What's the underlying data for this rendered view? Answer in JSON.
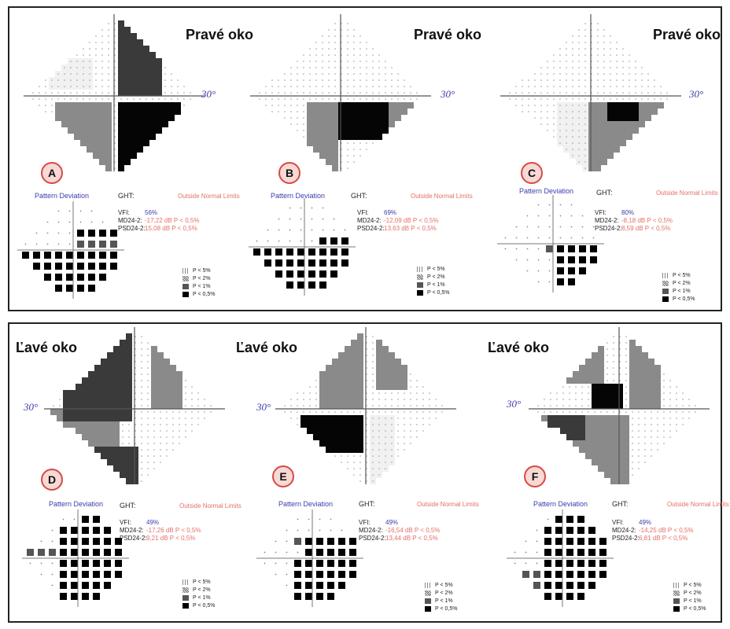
{
  "panels": [
    {
      "letter": "A",
      "eye": "Pravé oko",
      "degree": "30°",
      "pd_title": "Pattern Deviation",
      "ght_label": "GHT:",
      "ght_value": "Outside Normal Limits",
      "vfi_label": "VFI:",
      "vfi_value": "56%",
      "md_label": "MD24-2:",
      "md_value": "-17,22 dB P < 0,5%",
      "psd_label": "PSD24-2:",
      "psd_value": "15,08 dB P < 0,5%"
    },
    {
      "letter": "B",
      "eye": "Pravé oko",
      "degree": "30°",
      "pd_title": "Pattern Deviation",
      "ght_label": "GHT:",
      "ght_value": "Outside Normal Limits",
      "vfi_label": "VFI:",
      "vfi_value": "69%",
      "md_label": "MD24-2:",
      "md_value": "-12,09 dB P < 0,5%",
      "psd_label": "PSD24-2:",
      "psd_value": "13,63 dB P < 0,5%"
    },
    {
      "letter": "C",
      "eye": "Pravé oko",
      "degree": "30°",
      "pd_title": "Pattern Deviation",
      "ght_label": "GHT:",
      "ght_value": "Outside Normal Limits",
      "vfi_label": "VFI:",
      "vfi_value": "80%",
      "md_label": "MD24-2:",
      "md_value": "-8,18 dB P < 0,5%",
      "psd_label": "PSD24-2:",
      "psd_value": "8,59 dB P < 0,5%"
    },
    {
      "letter": "D",
      "eye": "Ľavé oko",
      "degree": "30°",
      "pd_title": "Pattern Deviation",
      "ght_label": "GHT:",
      "ght_value": "Outside Normal Limits",
      "vfi_label": "VFI:",
      "vfi_value": "49%",
      "md_label": "MD24-2:",
      "md_value": "-17,26 dB P < 0,5%",
      "psd_label": "PSD24-2:",
      "psd_value": "9,21 dB P < 0,5%"
    },
    {
      "letter": "E",
      "eye": "Ľavé oko",
      "degree": "30°",
      "pd_title": "Pattern Deviation",
      "ght_label": "GHT:",
      "ght_value": "Outside Normal Limits",
      "vfi_label": "VFI:",
      "vfi_value": "49%",
      "md_label": "MD24-2:",
      "md_value": "-16,54 dB P < 0,5%",
      "psd_label": "PSD24-2:",
      "psd_value": "13,44 dB P < 0,5%"
    },
    {
      "letter": "F",
      "eye": "Ľavé oko",
      "degree": "30°",
      "pd_title": "Pattern Deviation",
      "ght_label": "GHT:",
      "ght_value": "Outside Normal Limits",
      "vfi_label": "VFI:",
      "vfi_value": "49%",
      "md_label": "MD24-2:",
      "md_value": "-14,25 dB P < 0,5%",
      "psd_label": "PSD24-2:",
      "psd_value": "6,81 dB P < 0,5%"
    }
  ],
  "legend": [
    "P < 5%",
    "P < 2%",
    "P < 1%",
    "P < 0,5%"
  ],
  "colors": {
    "accent_blue": "#3b3bb0",
    "stat_red": "#e3706a",
    "badge_fill": "#f7d9d5",
    "badge_border": "#d84a44"
  }
}
